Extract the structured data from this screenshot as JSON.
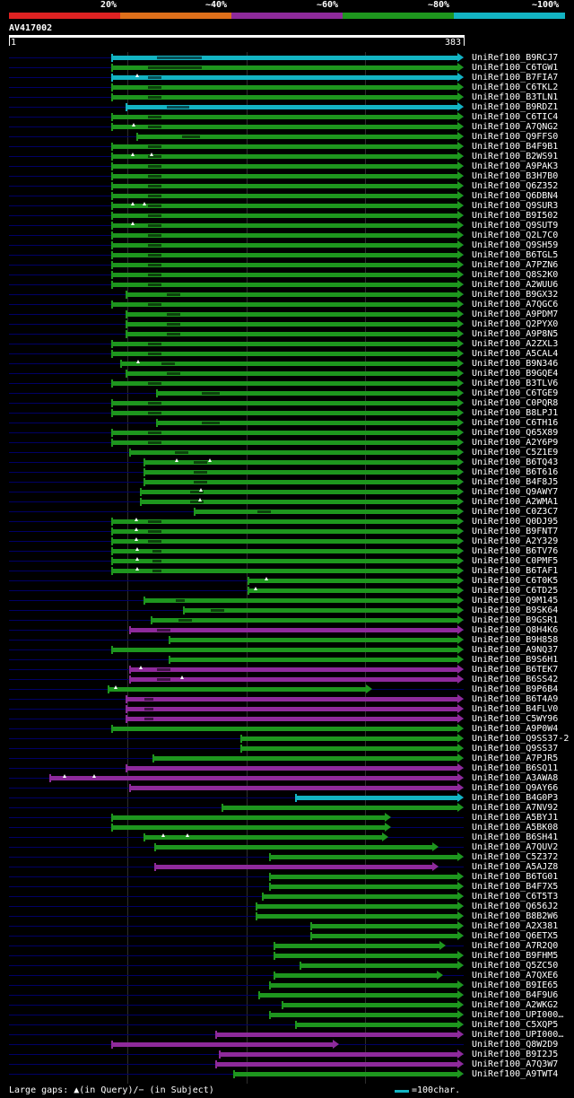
{
  "colors": {
    "c20": "#dd2222",
    "c40": "#dd6f1a",
    "c60": "#8e2a9b",
    "c80": "#1e961e",
    "c100": "#13b4c3",
    "shadow": "#000066"
  },
  "legend": [
    {
      "label": "20%",
      "color": "#dd2222"
    },
    {
      "label": "~40%",
      "color": "#dd6f1a"
    },
    {
      "label": "~60%",
      "color": "#8e2a9b"
    },
    {
      "label": "~80%",
      "color": "#1e961e"
    },
    {
      "label": "~100%",
      "color": "#13b4c3"
    }
  ],
  "query": {
    "id": "AV417002",
    "start": "1",
    "end": "383",
    "length": 383
  },
  "footer": {
    "gaps_text": "Large gaps: ▲(in Query)/− (in Subject)",
    "scale_text": "=100char."
  },
  "hits": [
    {
      "label": "UniRef100_B9RCJ7",
      "s": 88,
      "e": 383,
      "c": "c100",
      "sh": 0,
      "gq": [],
      "gs": [
        50,
        100
      ]
    },
    {
      "label": "UniRef100_C6TGW1",
      "s": 88,
      "e": 383,
      "c": "c80",
      "sh": 0,
      "gq": [],
      "gs": [
        40,
        100
      ]
    },
    {
      "label": "UniRef100_B7FIA7",
      "s": 88,
      "e": 383,
      "c": "c100",
      "sh": 0,
      "gq": [
        28
      ],
      "gs": [
        40,
        55
      ]
    },
    {
      "label": "UniRef100_C6TKL2",
      "s": 88,
      "e": 383,
      "c": "c80",
      "sh": 0,
      "gq": [],
      "gs": [
        40,
        55
      ]
    },
    {
      "label": "UniRef100_B3TLN1",
      "s": 88,
      "e": 383,
      "c": "c80",
      "sh": 0,
      "gq": [],
      "gs": [
        40,
        55
      ]
    },
    {
      "label": "UniRef100_B9RDZ1",
      "s": 100,
      "e": 383,
      "c": "c100",
      "sh": 0,
      "gq": [],
      "gs": [
        45,
        70
      ]
    },
    {
      "label": "UniRef100_C6TIC4",
      "s": 88,
      "e": 383,
      "c": "c80",
      "sh": 0,
      "gq": [],
      "gs": [
        40,
        55
      ]
    },
    {
      "label": "UniRef100_A7QNG2",
      "s": 88,
      "e": 383,
      "c": "c80",
      "sh": 0,
      "gq": [
        24
      ],
      "gs": [
        40,
        55
      ]
    },
    {
      "label": "UniRef100_Q9FFS0",
      "s": 109,
      "e": 383,
      "c": "c80",
      "sh": 0,
      "gq": [],
      "gs": [
        50,
        70
      ]
    },
    {
      "label": "UniRef100_B4F9B1",
      "s": 88,
      "e": 383,
      "c": "c80",
      "sh": 0,
      "gq": [],
      "gs": [
        40,
        55
      ]
    },
    {
      "label": "UniRef100_B2WS91",
      "s": 88,
      "e": 383,
      "c": "c80",
      "sh": 0,
      "gq": [
        23,
        44
      ],
      "gs": [
        40,
        55
      ]
    },
    {
      "label": "UniRef100_A9PAK3",
      "s": 88,
      "e": 383,
      "c": "c80",
      "sh": 0,
      "gq": [],
      "gs": [
        40,
        55
      ]
    },
    {
      "label": "UniRef100_B3H7B0",
      "s": 88,
      "e": 383,
      "c": "c80",
      "sh": 0,
      "gq": [],
      "gs": [
        40,
        55
      ]
    },
    {
      "label": "UniRef100_Q6Z352",
      "s": 88,
      "e": 383,
      "c": "c80",
      "sh": 0,
      "gq": [],
      "gs": [
        40,
        55
      ]
    },
    {
      "label": "UniRef100_Q6DBN4",
      "s": 88,
      "e": 383,
      "c": "c80",
      "sh": 0,
      "gq": [],
      "gs": [
        40,
        55
      ]
    },
    {
      "label": "UniRef100_Q9SUR3",
      "s": 88,
      "e": 383,
      "c": "c80",
      "sh": 0,
      "gq": [
        23,
        36
      ],
      "gs": [
        40,
        55
      ]
    },
    {
      "label": "UniRef100_B9I502",
      "s": 88,
      "e": 383,
      "c": "c80",
      "sh": 0,
      "gq": [],
      "gs": [
        40,
        55
      ]
    },
    {
      "label": "UniRef100_Q9SUT9",
      "s": 88,
      "e": 383,
      "c": "c80",
      "sh": 0,
      "gq": [
        23
      ],
      "gs": [
        40,
        55
      ]
    },
    {
      "label": "UniRef100_Q2L7C0",
      "s": 88,
      "e": 383,
      "c": "c80",
      "sh": 0,
      "gq": [],
      "gs": [
        40,
        55
      ]
    },
    {
      "label": "UniRef100_Q9SH59",
      "s": 88,
      "e": 383,
      "c": "c80",
      "sh": 0,
      "gq": [],
      "gs": [
        40,
        55
      ]
    },
    {
      "label": "UniRef100_B6TGL5",
      "s": 88,
      "e": 383,
      "c": "c80",
      "sh": 0,
      "gq": [],
      "gs": [
        40,
        55
      ]
    },
    {
      "label": "UniRef100_A7PZN6",
      "s": 88,
      "e": 383,
      "c": "c80",
      "sh": 0,
      "gq": [],
      "gs": [
        40,
        55
      ]
    },
    {
      "label": "UniRef100_Q8S2K0",
      "s": 88,
      "e": 383,
      "c": "c80",
      "sh": 0,
      "gq": [],
      "gs": [
        40,
        55
      ]
    },
    {
      "label": "UniRef100_A2WUU6",
      "s": 88,
      "e": 383,
      "c": "c80",
      "sh": 0,
      "gq": [],
      "gs": [
        40,
        55
      ]
    },
    {
      "label": "UniRef100_B9GX32",
      "s": 100,
      "e": 383,
      "c": "c80",
      "sh": 0,
      "gq": [],
      "gs": [
        45,
        60
      ]
    },
    {
      "label": "UniRef100_A7QGC6",
      "s": 88,
      "e": 383,
      "c": "c80",
      "sh": 0,
      "gq": [],
      "gs": [
        40,
        55
      ]
    },
    {
      "label": "UniRef100_A9PDM7",
      "s": 100,
      "e": 383,
      "c": "c80",
      "sh": 0,
      "gq": [],
      "gs": [
        45,
        60
      ]
    },
    {
      "label": "UniRef100_Q2PYX0",
      "s": 100,
      "e": 383,
      "c": "c80",
      "sh": 0,
      "gq": [],
      "gs": [
        45,
        60
      ]
    },
    {
      "label": "UniRef100_A9P8N5",
      "s": 100,
      "e": 383,
      "c": "c80",
      "sh": 0,
      "gq": [],
      "gs": [
        45,
        60
      ]
    },
    {
      "label": "UniRef100_A2ZXL3",
      "s": 88,
      "e": 383,
      "c": "c80",
      "sh": 0,
      "gq": [],
      "gs": [
        40,
        55
      ]
    },
    {
      "label": "UniRef100_A5CAL4",
      "s": 88,
      "e": 383,
      "c": "c80",
      "sh": 0,
      "gq": [],
      "gs": [
        40,
        55
      ]
    },
    {
      "label": "UniRef100_B9N346",
      "s": 95,
      "e": 383,
      "c": "c80",
      "sh": 0,
      "gq": [
        19
      ],
      "gs": [
        45,
        60
      ]
    },
    {
      "label": "UniRef100_B9GQE4",
      "s": 100,
      "e": 383,
      "c": "c80",
      "sh": 0,
      "gq": [],
      "gs": [
        45,
        60
      ]
    },
    {
      "label": "UniRef100_B3TLV6",
      "s": 88,
      "e": 383,
      "c": "c80",
      "sh": 0,
      "gq": [],
      "gs": [
        40,
        55
      ]
    },
    {
      "label": "UniRef100_C6TGE9",
      "s": 125,
      "e": 383,
      "c": "c80",
      "sh": 0,
      "gq": [],
      "gs": [
        50,
        70
      ]
    },
    {
      "label": "UniRef100_C0PQR8",
      "s": 88,
      "e": 383,
      "c": "c80",
      "sh": 0,
      "gq": [],
      "gs": [
        40,
        55
      ]
    },
    {
      "label": "UniRef100_B8LPJ1",
      "s": 88,
      "e": 383,
      "c": "c80",
      "sh": 0,
      "gq": [],
      "gs": [
        40,
        55
      ]
    },
    {
      "label": "UniRef100_C6TH16",
      "s": 125,
      "e": 383,
      "c": "c80",
      "sh": 0,
      "gq": [],
      "gs": [
        50,
        70
      ]
    },
    {
      "label": "UniRef100_Q65X89",
      "s": 88,
      "e": 383,
      "c": "c80",
      "sh": 0,
      "gq": [],
      "gs": [
        40,
        55
      ]
    },
    {
      "label": "UniRef100_A2Y6P9",
      "s": 88,
      "e": 383,
      "c": "c80",
      "sh": 0,
      "gq": [],
      "gs": [
        40,
        55
      ]
    },
    {
      "label": "UniRef100_C5Z1E9",
      "s": 103,
      "e": 383,
      "c": "c80",
      "sh": 0,
      "gq": [],
      "gs": [
        50,
        65
      ]
    },
    {
      "label": "UniRef100_B6TQ43",
      "s": 115,
      "e": 383,
      "c": "c80",
      "sh": 0,
      "gq": [
        36,
        73
      ],
      "gs": [
        55,
        70
      ]
    },
    {
      "label": "UniRef100_B6T616",
      "s": 115,
      "e": 383,
      "c": "c80",
      "sh": 0,
      "gq": [],
      "gs": [
        55,
        70
      ]
    },
    {
      "label": "UniRef100_B4F8J5",
      "s": 115,
      "e": 383,
      "c": "c80",
      "sh": 0,
      "gq": [],
      "gs": [
        55,
        70
      ]
    },
    {
      "label": "UniRef100_Q9AWY7",
      "s": 112,
      "e": 383,
      "c": "c80",
      "sh": 0,
      "gq": [
        67
      ],
      "gs": [
        55,
        70
      ]
    },
    {
      "label": "UniRef100_A2WMA1",
      "s": 112,
      "e": 383,
      "c": "c80",
      "sh": 0,
      "gq": [
        66
      ],
      "gs": [
        55,
        70
      ]
    },
    {
      "label": "UniRef100_C0Z3C7",
      "s": 157,
      "e": 383,
      "c": "c80",
      "sh": 0,
      "gq": [],
      "gs": [
        70,
        85
      ]
    },
    {
      "label": "UniRef100_Q0DJ95",
      "s": 88,
      "e": 383,
      "c": "c80",
      "sh": 0,
      "gq": [
        27
      ],
      "gs": [
        40,
        55
      ]
    },
    {
      "label": "UniRef100_B9FNT7",
      "s": 88,
      "e": 383,
      "c": "c80",
      "sh": 0,
      "gq": [
        27
      ],
      "gs": [
        40,
        55
      ]
    },
    {
      "label": "UniRef100_A2Y329",
      "s": 88,
      "e": 383,
      "c": "c80",
      "sh": 0,
      "gq": [
        27
      ],
      "gs": [
        40,
        55
      ]
    },
    {
      "label": "UniRef100_B6TV76",
      "s": 88,
      "e": 383,
      "c": "c80",
      "sh": 0,
      "gq": [
        28
      ],
      "gs": [
        45,
        55
      ]
    },
    {
      "label": "UniRef100_C0PMF5",
      "s": 88,
      "e": 383,
      "c": "c80",
      "sh": 0,
      "gq": [
        28
      ],
      "gs": [
        45,
        55
      ]
    },
    {
      "label": "UniRef100_B6TAF1",
      "s": 88,
      "e": 383,
      "c": "c80",
      "sh": 0,
      "gq": [
        28
      ],
      "gs": [
        45,
        55
      ]
    },
    {
      "label": "UniRef100_C6T0K5",
      "s": 202,
      "e": 383,
      "c": "c80",
      "sh": 0,
      "gq": [
        20
      ],
      "gs": []
    },
    {
      "label": "UniRef100_C6TD25",
      "s": 202,
      "e": 383,
      "c": "c80",
      "sh": 0,
      "gq": [
        8
      ],
      "gs": []
    },
    {
      "label": "UniRef100_Q9M145",
      "s": 115,
      "e": 383,
      "c": "c80",
      "sh": 0,
      "gq": [],
      "gs": [
        35,
        45
      ]
    },
    {
      "label": "UniRef100_B9SK64",
      "s": 148,
      "e": 383,
      "c": "c80",
      "sh": 0,
      "gq": [],
      "gs": [
        30,
        45
      ]
    },
    {
      "label": "UniRef100_B9GSR1",
      "s": 121,
      "e": 383,
      "c": "c80",
      "sh": 0,
      "gq": [],
      "gs": [
        30,
        45
      ]
    },
    {
      "label": "UniRef100_Q8H4K6",
      "s": 103,
      "e": 383,
      "c": "c60",
      "sh": 0,
      "gq": [],
      "gs": [
        30,
        45
      ]
    },
    {
      "label": "UniRef100_B9H858",
      "s": 136,
      "e": 383,
      "c": "c80",
      "sh": 0,
      "gq": [],
      "gs": []
    },
    {
      "label": "UniRef100_A9NQ37",
      "s": 88,
      "e": 383,
      "c": "c80",
      "sh": 0,
      "gq": [],
      "gs": []
    },
    {
      "label": "UniRef100_B9S6H1",
      "s": 136,
      "e": 383,
      "c": "c80",
      "sh": 0,
      "gq": [],
      "gs": []
    },
    {
      "label": "UniRef100_B6TEK7",
      "s": 103,
      "e": 383,
      "c": "c60",
      "sh": 0,
      "gq": [
        12
      ],
      "gs": [
        30,
        45
      ]
    },
    {
      "label": "UniRef100_B6SS42",
      "s": 103,
      "e": 383,
      "c": "c60",
      "sh": 0,
      "gq": [
        58
      ],
      "gs": [
        30,
        45
      ]
    },
    {
      "label": "UniRef100_B9P6B4",
      "s": 85,
      "e": 306,
      "c": "c80",
      "sh": 0,
      "gq": [
        8
      ],
      "gs": []
    },
    {
      "label": "UniRef100_B6T4A9",
      "s": 100,
      "e": 383,
      "c": "c60",
      "sh": 0,
      "gq": [],
      "gs": [
        20,
        30
      ]
    },
    {
      "label": "UniRef100_B4FLV0",
      "s": 100,
      "e": 383,
      "c": "c60",
      "sh": 0,
      "gq": [],
      "gs": [
        20,
        30
      ]
    },
    {
      "label": "UniRef100_C5WY96",
      "s": 100,
      "e": 383,
      "c": "c60",
      "sh": 0,
      "gq": [],
      "gs": [
        20,
        30
      ]
    },
    {
      "label": "UniRef100_A9P0W4",
      "s": 88,
      "e": 383,
      "c": "c80",
      "sh": 0,
      "gq": [],
      "gs": []
    },
    {
      "label": "UniRef100_Q9SS37-2",
      "s": 196,
      "e": 383,
      "c": "c80",
      "sh": 0,
      "gq": [],
      "gs": []
    },
    {
      "label": "UniRef100_Q9SS37",
      "s": 196,
      "e": 383,
      "c": "c80",
      "sh": 0,
      "gq": [],
      "gs": []
    },
    {
      "label": "UniRef100_A7PJR5",
      "s": 122,
      "e": 383,
      "c": "c80",
      "sh": 0,
      "gq": [],
      "gs": []
    },
    {
      "label": "UniRef100_B6SQ11",
      "s": 100,
      "e": 383,
      "c": "c60",
      "sh": 0,
      "gq": [],
      "gs": []
    },
    {
      "label": "UniRef100_A3AWA8",
      "s": 36,
      "e": 383,
      "c": "c60",
      "sh": 0,
      "gq": [
        16,
        49
      ],
      "gs": []
    },
    {
      "label": "UniRef100_Q9AY66",
      "s": 103,
      "e": 383,
      "c": "c60",
      "sh": 0,
      "gq": [],
      "gs": []
    },
    {
      "label": "UniRef100_B4G0P3",
      "s": 242,
      "e": 383,
      "c": "c100",
      "sh": 0,
      "gq": [],
      "gs": []
    },
    {
      "label": "UniRef100_A7NV92",
      "s": 180,
      "e": 383,
      "c": "c80",
      "sh": 0,
      "gq": [],
      "gs": []
    },
    {
      "label": "UniRef100_A5BYJ1",
      "s": 88,
      "e": 322,
      "c": "c80",
      "sh": 0,
      "gq": [],
      "gs": []
    },
    {
      "label": "UniRef100_A5BK08",
      "s": 88,
      "e": 322,
      "c": "c80",
      "sh": 0,
      "gq": [],
      "gs": []
    },
    {
      "label": "UniRef100_B6SH41",
      "s": 115,
      "e": 320,
      "c": "c80",
      "sh": 0,
      "gq": [
        21,
        48
      ],
      "gs": []
    },
    {
      "label": "UniRef100_A7QUV2",
      "s": 124,
      "e": 362,
      "c": "c80",
      "sh": 0,
      "gq": [],
      "gs": []
    },
    {
      "label": "UniRef100_C5Z372",
      "s": 220,
      "e": 383,
      "c": "c80",
      "sh": 0,
      "gq": [],
      "gs": []
    },
    {
      "label": "UniRef100_A5AJZ8",
      "s": 124,
      "e": 362,
      "c": "c60",
      "sh": 0,
      "gq": [],
      "gs": []
    },
    {
      "label": "UniRef100_B6TG01",
      "s": 220,
      "e": 383,
      "c": "c80",
      "sh": 0,
      "gq": [],
      "gs": []
    },
    {
      "label": "UniRef100_B4F7X5",
      "s": 220,
      "e": 383,
      "c": "c80",
      "sh": 0,
      "gq": [],
      "gs": []
    },
    {
      "label": "UniRef100_C6T5T3",
      "s": 214,
      "e": 383,
      "c": "c80",
      "sh": 0,
      "gq": [],
      "gs": []
    },
    {
      "label": "UniRef100_Q656J2",
      "s": 209,
      "e": 383,
      "c": "c80",
      "sh": 0,
      "gq": [],
      "gs": []
    },
    {
      "label": "UniRef100_B8B2W6",
      "s": 209,
      "e": 383,
      "c": "c80",
      "sh": 0,
      "gq": [],
      "gs": []
    },
    {
      "label": "UniRef100_A2X381",
      "s": 255,
      "e": 383,
      "c": "c80",
      "sh": 0,
      "gq": [],
      "gs": []
    },
    {
      "label": "UniRef100_Q6ETX5",
      "s": 255,
      "e": 383,
      "c": "c80",
      "sh": 0,
      "gq": [],
      "gs": []
    },
    {
      "label": "UniRef100_A7R2Q0",
      "s": 224,
      "e": 368,
      "c": "c80",
      "sh": 0,
      "gq": [],
      "gs": []
    },
    {
      "label": "UniRef100_B9FHM5",
      "s": 224,
      "e": 383,
      "c": "c80",
      "sh": 0,
      "gq": [],
      "gs": []
    },
    {
      "label": "UniRef100_Q5ZC50",
      "s": 246,
      "e": 383,
      "c": "c80",
      "sh": 0,
      "gq": [],
      "gs": []
    },
    {
      "label": "UniRef100_A7QXE6",
      "s": 224,
      "e": 366,
      "c": "c80",
      "sh": 0,
      "gq": [],
      "gs": []
    },
    {
      "label": "UniRef100_B9IE65",
      "s": 220,
      "e": 383,
      "c": "c80",
      "sh": 0,
      "gq": [],
      "gs": []
    },
    {
      "label": "UniRef100_B4F9U6",
      "s": 211,
      "e": 383,
      "c": "c80",
      "sh": 0,
      "gq": [],
      "gs": []
    },
    {
      "label": "UniRef100_A2WKG2",
      "s": 231,
      "e": 383,
      "c": "c80",
      "sh": 0,
      "gq": [],
      "gs": []
    },
    {
      "label": "UniRef100_UPI000…",
      "s": 220,
      "e": 383,
      "c": "c80",
      "sh": 0,
      "gq": [],
      "gs": []
    },
    {
      "label": "UniRef100_C5XQP5",
      "s": 242,
      "e": 383,
      "c": "c80",
      "sh": 0,
      "gq": [],
      "gs": []
    },
    {
      "label": "UniRef100_UPI000…",
      "s": 175,
      "e": 383,
      "c": "c60",
      "sh": 0,
      "gq": [],
      "gs": []
    },
    {
      "label": "UniRef100_Q8W2D9",
      "s": 88,
      "e": 278,
      "c": "c60",
      "sh": 0,
      "gq": [],
      "gs": []
    },
    {
      "label": "UniRef100_B9I2J5",
      "s": 178,
      "e": 383,
      "c": "c60",
      "sh": 0,
      "gq": [],
      "gs": []
    },
    {
      "label": "UniRef100_A7Q3W7",
      "s": 175,
      "e": 383,
      "c": "c60",
      "sh": 0,
      "gq": [],
      "gs": []
    },
    {
      "label": "UniRef100_A9TWT4",
      "s": 190,
      "e": 383,
      "c": "c80",
      "sh": 0,
      "gq": [],
      "gs": []
    }
  ]
}
